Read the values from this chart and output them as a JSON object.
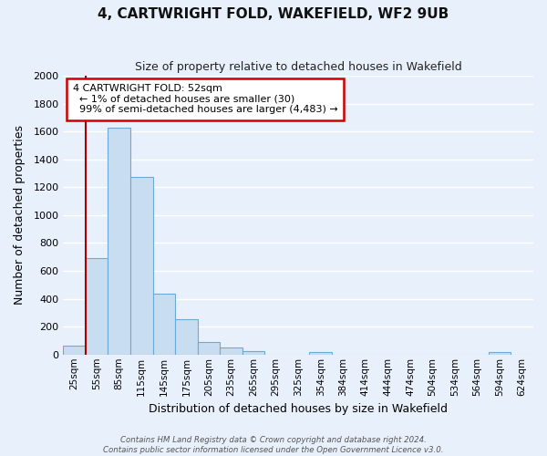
{
  "title": "4, CARTWRIGHT FOLD, WAKEFIELD, WF2 9UB",
  "subtitle": "Size of property relative to detached houses in Wakefield",
  "xlabel": "Distribution of detached houses by size in Wakefield",
  "ylabel": "Number of detached properties",
  "bar_color": "#c9ddf0",
  "bar_edge_color": "#6aaad4",
  "background_color": "#e8f1fb",
  "fig_background_color": "#e8f1fb",
  "grid_color": "#ffffff",
  "categories": [
    "25sqm",
    "55sqm",
    "85sqm",
    "115sqm",
    "145sqm",
    "175sqm",
    "205sqm",
    "235sqm",
    "265sqm",
    "295sqm",
    "325sqm",
    "354sqm",
    "384sqm",
    "414sqm",
    "444sqm",
    "474sqm",
    "504sqm",
    "534sqm",
    "564sqm",
    "594sqm",
    "624sqm"
  ],
  "values": [
    65,
    695,
    1630,
    1275,
    435,
    252,
    90,
    50,
    25,
    0,
    0,
    15,
    0,
    0,
    0,
    0,
    0,
    0,
    0,
    15,
    0
  ],
  "ylim": [
    0,
    2000
  ],
  "yticks": [
    0,
    200,
    400,
    600,
    800,
    1000,
    1200,
    1400,
    1600,
    1800,
    2000
  ],
  "property_line_color": "#aa0000",
  "annotation_title": "4 CARTWRIGHT FOLD: 52sqm",
  "annotation_line1": "← 1% of detached houses are smaller (30)",
  "annotation_line2": "99% of semi-detached houses are larger (4,483) →",
  "annotation_box_color": "#ffffff",
  "annotation_box_edge": "#cc0000",
  "footer1": "Contains HM Land Registry data © Crown copyright and database right 2024.",
  "footer2": "Contains public sector information licensed under the Open Government Licence v3.0."
}
